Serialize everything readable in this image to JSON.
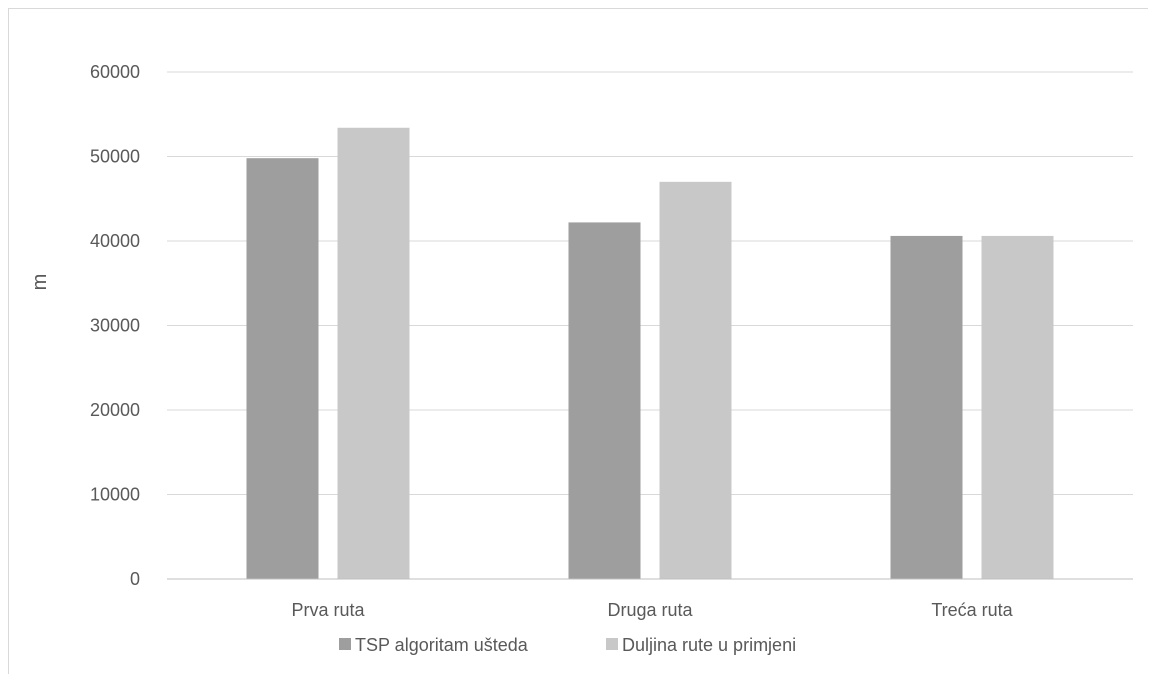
{
  "chart_data": {
    "type": "bar",
    "title": "",
    "xlabel": "",
    "ylabel": "m",
    "ylim": [
      0,
      60000
    ],
    "yticks": [
      0,
      10000,
      20000,
      30000,
      40000,
      50000,
      60000
    ],
    "grid": true,
    "legend_position": "bottom",
    "categories": [
      "Prva ruta",
      "Druga ruta",
      "Treća ruta"
    ],
    "series": [
      {
        "name": "TSP algoritam ušteda",
        "color": "#9e9e9e",
        "values": [
          49800,
          42200,
          40600
        ]
      },
      {
        "name": "Duljina rute u primjeni",
        "color": "#c8c8c8",
        "values": [
          53400,
          47000,
          40600
        ]
      }
    ]
  }
}
